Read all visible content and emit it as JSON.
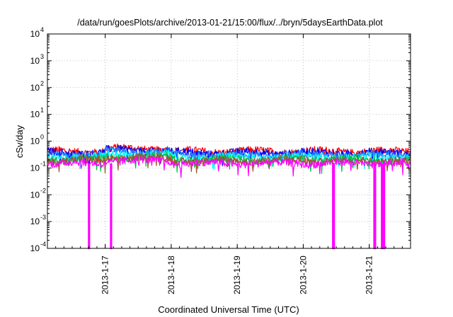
{
  "chart_data": {
    "type": "line",
    "title": "/data/run/goesPlots/archive/2013-01-21/15:00/flux/../bryn/5daysEarthData.plot",
    "xlabel": "Coordinated Universal Time (UTC)",
    "ylabel": "cSv/day",
    "yscale": "log",
    "ylim": [
      0.0001,
      10000
    ],
    "xlim": [
      "2013-01-16 03:00",
      "2013-01-21 15:00"
    ],
    "grid": true,
    "legend": "none",
    "y_ticks": [
      {
        "base": "10",
        "exp": "-4",
        "value": 0.0001
      },
      {
        "base": "10",
        "exp": "-3",
        "value": 0.001
      },
      {
        "base": "10",
        "exp": "-2",
        "value": 0.01
      },
      {
        "base": "10",
        "exp": "-1",
        "value": 0.1
      },
      {
        "base": "10",
        "exp": "0",
        "value": 1
      },
      {
        "base": "10",
        "exp": "1",
        "value": 10
      },
      {
        "base": "10",
        "exp": "2",
        "value": 100
      },
      {
        "base": "10",
        "exp": "3",
        "value": 1000
      },
      {
        "base": "10",
        "exp": "4",
        "value": 10000
      }
    ],
    "x_ticks": [
      "2013-1-17",
      "2013-1-18",
      "2013-1-19",
      "2013-1-20",
      "2013-1-21"
    ],
    "series": [
      {
        "color": "#ff0000",
        "level": 0.42
      },
      {
        "color": "#0000ff",
        "level": 0.37
      },
      {
        "color": "#1e90ff",
        "level": 0.31
      },
      {
        "color": "#00ffff",
        "level": 0.25
      },
      {
        "color": "#00c040",
        "level": 0.21
      },
      {
        "color": "#a0522d",
        "level": 0.19
      },
      {
        "color": "#ff00ff",
        "level": 0.15
      }
    ],
    "dropouts": [
      {
        "start": "2013-01-16 18:00",
        "end": "2013-01-16 18:15",
        "value": 0.0001
      },
      {
        "start": "2013-01-17 02:00",
        "end": "2013-01-17 02:15",
        "value": 0.0001
      },
      {
        "start": "2013-01-20 10:45",
        "end": "2013-01-20 11:15",
        "value": 0.0001
      },
      {
        "start": "2013-01-21 01:45",
        "end": "2013-01-21 02:15",
        "value": 0.0001
      },
      {
        "start": "2013-01-21 04:30",
        "end": "2013-01-21 04:45",
        "value": 0.0001
      },
      {
        "start": "2013-01-21 05:15",
        "end": "2013-01-21 05:30",
        "value": 0.0001
      }
    ]
  }
}
